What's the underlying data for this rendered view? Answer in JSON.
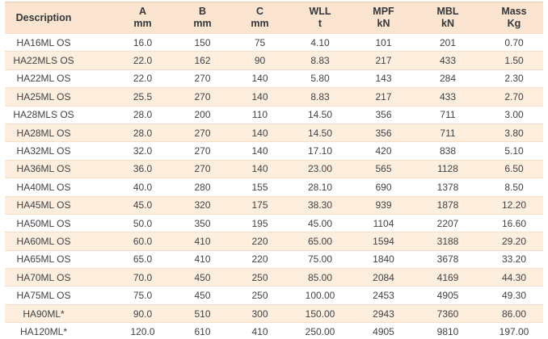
{
  "colors": {
    "header_background": "#fce5d0",
    "stripe_row_background": "#fdeede",
    "row_border": "#f5dfc9",
    "top_border": "#e7ccb2",
    "header_text": "#33373c",
    "body_text": "#3f4347"
  },
  "table": {
    "columns": [
      {
        "label": "Description",
        "unit": ""
      },
      {
        "label": "A",
        "unit": "mm"
      },
      {
        "label": "B",
        "unit": "mm"
      },
      {
        "label": "C",
        "unit": "mm"
      },
      {
        "label": "WLL",
        "unit": "t"
      },
      {
        "label": "MPF",
        "unit": "kN"
      },
      {
        "label": "MBL",
        "unit": "kN"
      },
      {
        "label": "Mass",
        "unit": "Kg"
      }
    ],
    "rows": [
      [
        "HA16ML OS",
        "16.0",
        "150",
        "75",
        "4.10",
        "101",
        "201",
        "0.70"
      ],
      [
        "HA22MLS OS",
        "22.0",
        "162",
        "90",
        "8.83",
        "217",
        "433",
        "1.50"
      ],
      [
        "HA22ML OS",
        "22.0",
        "270",
        "140",
        "5.80",
        "143",
        "284",
        "2.30"
      ],
      [
        "HA25ML OS",
        "25.5",
        "270",
        "140",
        "8.83",
        "217",
        "433",
        "2.70"
      ],
      [
        "HA28MLS OS",
        "28.0",
        "200",
        "110",
        "14.50",
        "356",
        "711",
        "3.00"
      ],
      [
        "HA28ML OS",
        "28.0",
        "270",
        "140",
        "14.50",
        "356",
        "711",
        "3.80"
      ],
      [
        "HA32ML OS",
        "32.0",
        "270",
        "140",
        "17.10",
        "420",
        "838",
        "5.10"
      ],
      [
        "HA36ML OS",
        "36.0",
        "270",
        "140",
        "23.00",
        "565",
        "1128",
        "6.50"
      ],
      [
        "HA40ML OS",
        "40.0",
        "280",
        "155",
        "28.10",
        "690",
        "1378",
        "8.50"
      ],
      [
        "HA45ML OS",
        "45.0",
        "320",
        "175",
        "38.30",
        "939",
        "1878",
        "12.20"
      ],
      [
        "HA50ML OS",
        "50.0",
        "350",
        "195",
        "45.00",
        "1104",
        "2207",
        "16.60"
      ],
      [
        "HA60ML OS",
        "60.0",
        "410",
        "220",
        "65.00",
        "1594",
        "3188",
        "29.20"
      ],
      [
        "HA65ML OS",
        "65.0",
        "410",
        "220",
        "75.00",
        "1840",
        "3678",
        "33.20"
      ],
      [
        "HA70ML OS",
        "70.0",
        "450",
        "250",
        "85.00",
        "2084",
        "4169",
        "44.30"
      ],
      [
        "HA75ML OS",
        "75.0",
        "450",
        "250",
        "100.00",
        "2453",
        "4905",
        "49.30"
      ],
      [
        "HA90ML*",
        "90.0",
        "510",
        "300",
        "150.00",
        "2943",
        "7360",
        "86.00"
      ],
      [
        "HA120ML*",
        "120.0",
        "610",
        "410",
        "250.00",
        "4905",
        "9810",
        "197.00"
      ]
    ]
  },
  "chart_data": {
    "type": "table",
    "title": "",
    "columns": [
      "Description",
      "A mm",
      "B mm",
      "C mm",
      "WLL t",
      "MPF kN",
      "MBL kN",
      "Mass Kg"
    ],
    "rows": [
      [
        "HA16ML OS",
        16.0,
        150,
        75,
        4.1,
        101,
        201,
        0.7
      ],
      [
        "HA22MLS OS",
        22.0,
        162,
        90,
        8.83,
        217,
        433,
        1.5
      ],
      [
        "HA22ML OS",
        22.0,
        270,
        140,
        5.8,
        143,
        284,
        2.3
      ],
      [
        "HA25ML OS",
        25.5,
        270,
        140,
        8.83,
        217,
        433,
        2.7
      ],
      [
        "HA28MLS OS",
        28.0,
        200,
        110,
        14.5,
        356,
        711,
        3.0
      ],
      [
        "HA28ML OS",
        28.0,
        270,
        140,
        14.5,
        356,
        711,
        3.8
      ],
      [
        "HA32ML OS",
        32.0,
        270,
        140,
        17.1,
        420,
        838,
        5.1
      ],
      [
        "HA36ML OS",
        36.0,
        270,
        140,
        23.0,
        565,
        1128,
        6.5
      ],
      [
        "HA40ML OS",
        40.0,
        280,
        155,
        28.1,
        690,
        1378,
        8.5
      ],
      [
        "HA45ML OS",
        45.0,
        320,
        175,
        38.3,
        939,
        1878,
        12.2
      ],
      [
        "HA50ML OS",
        50.0,
        350,
        195,
        45.0,
        1104,
        2207,
        16.6
      ],
      [
        "HA60ML OS",
        60.0,
        410,
        220,
        65.0,
        1594,
        3188,
        29.2
      ],
      [
        "HA65ML OS",
        65.0,
        410,
        220,
        75.0,
        1840,
        3678,
        33.2
      ],
      [
        "HA70ML OS",
        70.0,
        450,
        250,
        85.0,
        2084,
        4169,
        44.3
      ],
      [
        "HA75ML OS",
        75.0,
        450,
        250,
        100.0,
        2453,
        4905,
        49.3
      ],
      [
        "HA90ML*",
        90.0,
        510,
        300,
        150.0,
        2943,
        7360,
        86.0
      ],
      [
        "HA120ML*",
        120.0,
        610,
        410,
        250.0,
        4905,
        9810,
        197.0
      ]
    ]
  }
}
